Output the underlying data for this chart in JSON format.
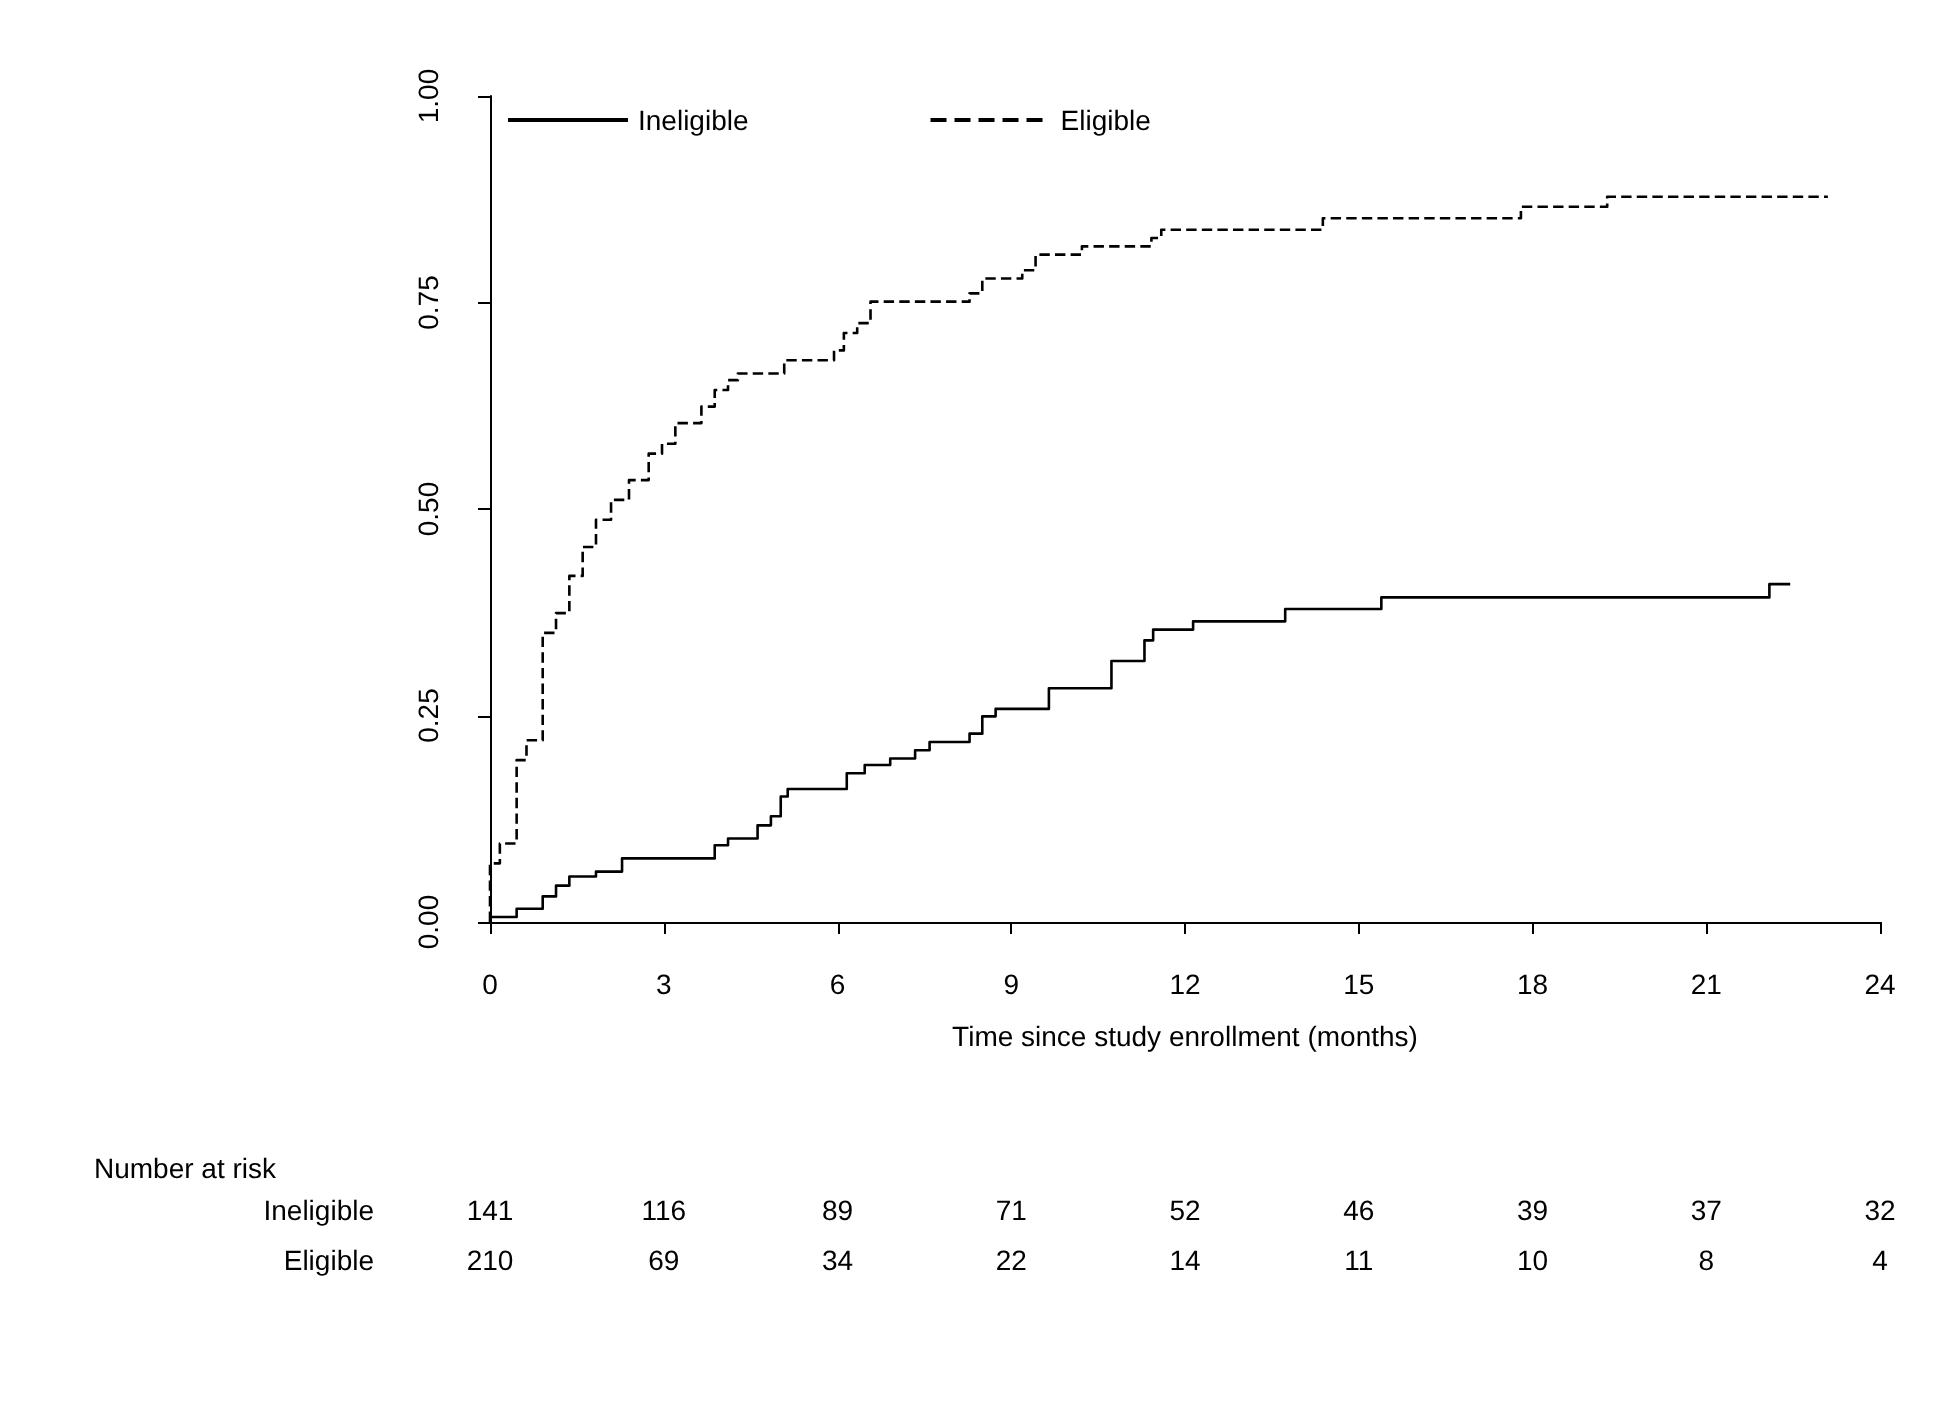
{
  "chart_data": {
    "type": "step",
    "xlabel": "Time since study enrollment (months)",
    "xlim": [
      0,
      24
    ],
    "xticks": [
      0,
      3,
      6,
      9,
      12,
      15,
      18,
      21,
      24
    ],
    "ylim": [
      0,
      1
    ],
    "yticks": [
      {
        "value": 0,
        "label": "0.00"
      },
      {
        "value": 0.25,
        "label": "0.25"
      },
      {
        "value": 0.5,
        "label": "0.50"
      },
      {
        "value": 0.75,
        "label": "0.75"
      },
      {
        "value": 1,
        "label": "1.00"
      }
    ],
    "grid": false,
    "legend": "top left",
    "marker": "none",
    "series": [
      {
        "name": "Ineligible",
        "color": "#000000",
        "line_style": "solid",
        "x": [
          0,
          0.46,
          0.91,
          1.14,
          1.37,
          1.83,
          2.28,
          3.88,
          4.11,
          4.62,
          4.85,
          5.02,
          5.14,
          6.16,
          6.47,
          6.91,
          7.34,
          7.59,
          8.28,
          8.5,
          8.73,
          9.65,
          10.73,
          11.3,
          11.45,
          12.14,
          13.73,
          15.39,
          22.09,
          22.45
        ],
        "values": [
          0.006,
          0.016,
          0.031,
          0.044,
          0.055,
          0.061,
          0.077,
          0.093,
          0.101,
          0.117,
          0.128,
          0.152,
          0.161,
          0.18,
          0.19,
          0.198,
          0.208,
          0.218,
          0.228,
          0.249,
          0.258,
          0.283,
          0.316,
          0.341,
          0.354,
          0.364,
          0.379,
          0.393,
          0.409,
          0.409
        ]
      },
      {
        "name": "Eligible",
        "color": "#000000",
        "line_style": "dashed",
        "x": [
          0,
          0,
          0.17,
          0.46,
          0.63,
          0.91,
          1.14,
          1.37,
          1.6,
          1.83,
          2.09,
          2.4,
          2.74,
          2.97,
          3.2,
          3.65,
          3.88,
          4.11,
          4.28,
          5.08,
          5.94,
          6.11,
          6.34,
          6.57,
          8.28,
          8.5,
          9.19,
          9.42,
          10.22,
          11.42,
          11.59,
          14.38,
          17.8,
          19.29,
          23.1
        ],
        "values": [
          0,
          0.071,
          0.095,
          0.196,
          0.22,
          0.35,
          0.374,
          0.419,
          0.454,
          0.487,
          0.511,
          0.535,
          0.567,
          0.579,
          0.604,
          0.624,
          0.644,
          0.656,
          0.664,
          0.68,
          0.692,
          0.713,
          0.725,
          0.751,
          0.761,
          0.779,
          0.789,
          0.808,
          0.818,
          0.828,
          0.838,
          0.852,
          0.866,
          0.878,
          0.878
        ]
      }
    ],
    "annotations": [
      "Number at risk",
      "Ineligible",
      "141",
      "116",
      "89",
      "71",
      "52",
      "46",
      "39",
      "37",
      "32",
      "Eligible",
      "210",
      "69",
      "34",
      "22",
      "14",
      "11",
      "10",
      "8",
      "4"
    ]
  }
}
